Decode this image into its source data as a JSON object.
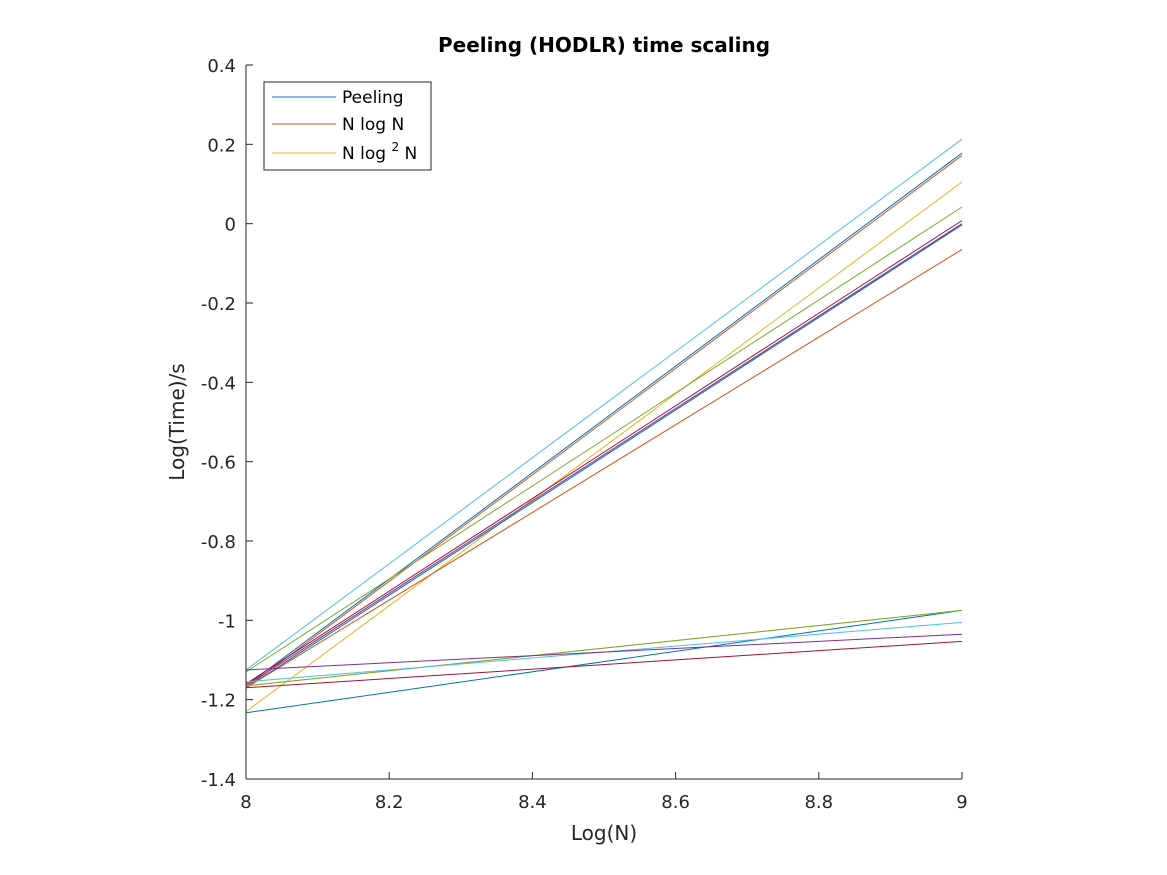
{
  "chart_data": {
    "type": "line",
    "title": "Peeling (HODLR) time scaling",
    "xlabel": "Log(N)",
    "ylabel": "Log(Time)/s",
    "xlim": [
      8,
      9
    ],
    "ylim": [
      -1.4,
      0.4
    ],
    "xticks": [
      "8",
      "8.2",
      "8.4",
      "8.6",
      "8.8",
      "9"
    ],
    "yticks": [
      "0.4",
      "0.2",
      "0",
      "-0.2",
      "-0.4",
      "-0.6",
      "-0.8",
      "-1",
      "-1.2",
      "-1.4"
    ],
    "grid": false,
    "legend_position": "top-left",
    "legend": [
      {
        "label": "Peeling",
        "color": "#0072BD"
      },
      {
        "label": "N log N",
        "color": "#D95319"
      },
      {
        "label": "N log",
        "sup": "2",
        "label_after": "N",
        "color": "#EDB120"
      }
    ],
    "series": [
      {
        "color": "#4DBEEE",
        "x": [
          8,
          9
        ],
        "y": [
          -1.125,
          0.213
        ]
      },
      {
        "color": "#0072BD",
        "x": [
          8,
          9
        ],
        "y": [
          -1.165,
          0.178
        ]
      },
      {
        "color": "#D95319",
        "x": [
          8,
          9
        ],
        "y": [
          -1.17,
          0.172
        ]
      },
      {
        "color": "#EDB120",
        "x": [
          8,
          9
        ],
        "y": [
          -1.23,
          0.105
        ]
      },
      {
        "color": "#77AC30",
        "x": [
          8,
          9
        ],
        "y": [
          -1.13,
          0.042
        ]
      },
      {
        "color": "#A2142F",
        "x": [
          8,
          9
        ],
        "y": [
          -1.16,
          0.008
        ]
      },
      {
        "color": "#7E2F8E",
        "x": [
          8,
          9
        ],
        "y": [
          -1.165,
          0.0
        ]
      },
      {
        "color": "#0072BD",
        "x": [
          8,
          9
        ],
        "y": [
          -1.17,
          -0.003
        ]
      },
      {
        "color": "#D95319",
        "x": [
          8,
          9
        ],
        "y": [
          -1.17,
          -0.065
        ]
      },
      {
        "color": "#0072BD",
        "x": [
          8,
          9
        ],
        "y": [
          -1.233,
          -0.975
        ]
      },
      {
        "color": "#EDB120",
        "x": [
          8,
          9
        ],
        "y": [
          -1.165,
          -0.975
        ]
      },
      {
        "color": "#77AC30",
        "x": [
          8,
          9
        ],
        "y": [
          -1.165,
          -0.975
        ]
      },
      {
        "color": "#4DBEEE",
        "x": [
          8,
          9
        ],
        "y": [
          -1.155,
          -1.005
        ]
      },
      {
        "color": "#7E2F8E",
        "x": [
          8,
          9
        ],
        "y": [
          -1.125,
          -1.035
        ]
      },
      {
        "color": "#A2142F",
        "x": [
          8,
          9
        ],
        "y": [
          -1.17,
          -1.053
        ]
      }
    ]
  }
}
